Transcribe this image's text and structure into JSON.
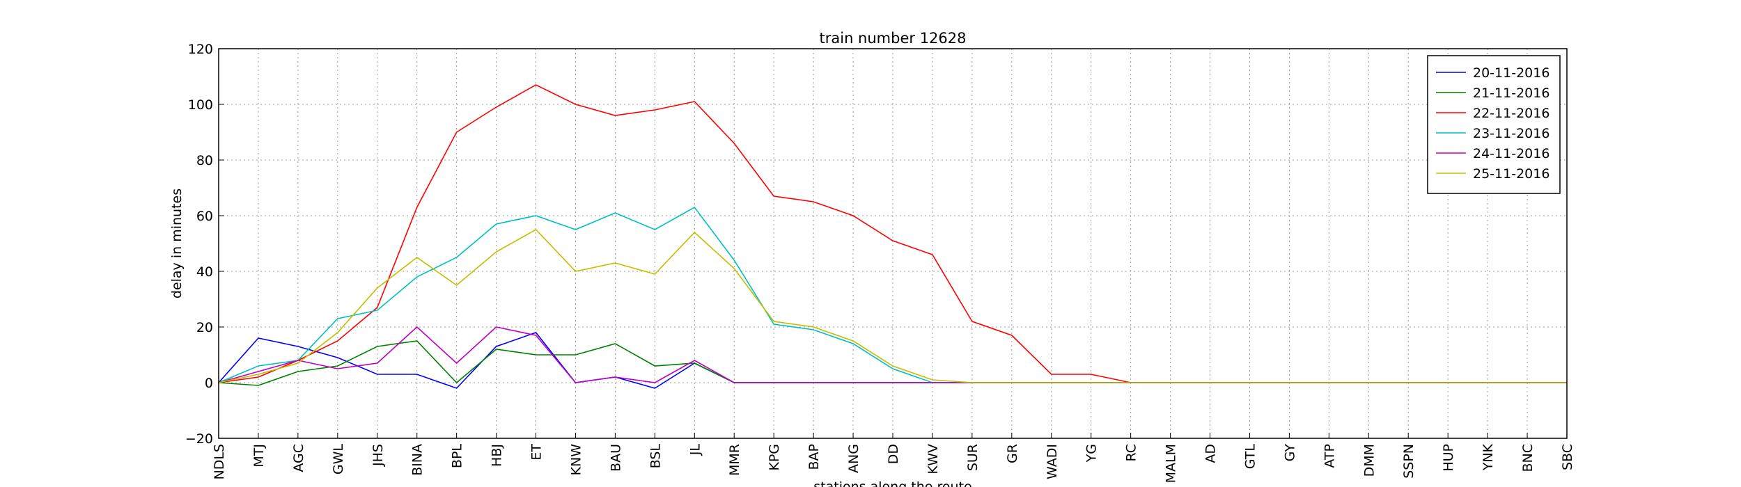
{
  "chart_data": {
    "type": "line",
    "title": "train number 12628",
    "x_label": "stations along the route",
    "y_label": "delay in minutes",
    "categories": [
      "NDLS",
      "MTJ",
      "AGC",
      "GWL",
      "JHS",
      "BINA",
      "BPL",
      "HBJ",
      "ET",
      "KNW",
      "BAU",
      "BSL",
      "JL",
      "MMR",
      "KPG",
      "BAP",
      "ANG",
      "DD",
      "KWV",
      "SUR",
      "GR",
      "WADI",
      "YG",
      "RC",
      "MALM",
      "AD",
      "GTL",
      "GY",
      "ATP",
      "DMM",
      "SSPN",
      "HUP",
      "YNK",
      "BNC",
      "SBC"
    ],
    "ylim": [
      -20,
      120
    ],
    "yticks": [
      {
        "value": -20,
        "label": "−20"
      },
      0,
      20,
      40,
      60,
      80,
      100,
      120
    ],
    "grid": true,
    "legend": "upper right",
    "series": [
      {
        "name": "20-11-2016",
        "color": "#0000ff",
        "values": [
          0,
          16,
          13,
          9,
          3,
          3,
          -2,
          13,
          18,
          0,
          2,
          -2,
          7,
          0,
          0,
          0,
          0,
          0,
          0,
          0,
          0,
          0,
          0,
          0,
          0,
          0,
          0,
          0,
          0,
          0,
          0,
          0,
          0,
          0,
          0
        ]
      },
      {
        "name": "21-11-2016",
        "color": "#008000",
        "values": [
          0,
          -1,
          4,
          6,
          13,
          15,
          0,
          12,
          10,
          10,
          14,
          6,
          7,
          0,
          0,
          0,
          0,
          0,
          0,
          0,
          0,
          0,
          0,
          0,
          0,
          0,
          0,
          0,
          0,
          0,
          0,
          0,
          0,
          0,
          0
        ]
      },
      {
        "name": "22-11-2016",
        "color": "#ff0000",
        "values": [
          0,
          2,
          8,
          15,
          27,
          63,
          90,
          99,
          107,
          100,
          96,
          98,
          101,
          86,
          67,
          65,
          60,
          51,
          46,
          22,
          17,
          3,
          3,
          0,
          0,
          0,
          0,
          0,
          0,
          0,
          0,
          0,
          0,
          0,
          0
        ]
      },
      {
        "name": "23-11-2016",
        "color": "#00bfbf",
        "values": [
          0,
          6,
          8,
          23,
          26,
          38,
          45,
          57,
          60,
          55,
          61,
          55,
          63,
          44,
          21,
          19,
          14,
          5,
          0,
          0,
          0,
          0,
          0,
          0,
          0,
          0,
          0,
          0,
          0,
          0,
          0,
          0,
          0,
          0,
          0
        ]
      },
      {
        "name": "24-11-2016",
        "color": "#bf00bf",
        "values": [
          0,
          4,
          8,
          5,
          7,
          20,
          7,
          20,
          17,
          0,
          2,
          0,
          8,
          0,
          0,
          0,
          0,
          0,
          0,
          0,
          0,
          0,
          0,
          0,
          0,
          0,
          0,
          0,
          0,
          0,
          0,
          0,
          0,
          0,
          0
        ]
      },
      {
        "name": "25-11-2016",
        "color": "#bfbf00",
        "values": [
          0,
          3,
          7,
          18,
          34,
          45,
          35,
          47,
          55,
          40,
          43,
          39,
          54,
          41,
          22,
          20,
          15,
          6,
          1,
          0,
          0,
          0,
          0,
          0,
          0,
          0,
          0,
          0,
          0,
          0,
          0,
          0,
          0,
          0,
          0
        ]
      }
    ]
  }
}
